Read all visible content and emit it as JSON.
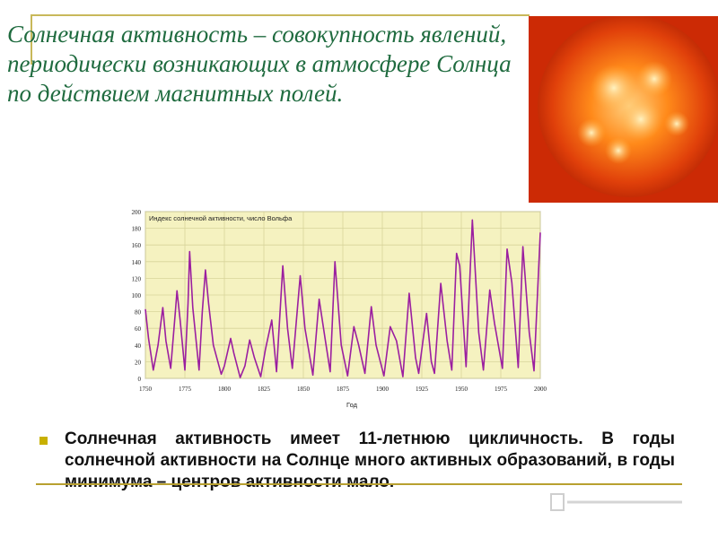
{
  "slide": {
    "title": "Солнечная активность – совокупность явлений, периодически возникающих в атмосфере Солнца по действием магнитных полей.",
    "bullet_text": "Солнечная активность имеет 11-летнюю цикличность. В годы солнечной активности на Солнце много активных образований, в годы минимума – центров активности мало.",
    "colors": {
      "title": "#1f6b3f",
      "accent": "#c8b000",
      "series": "#9b1fa0",
      "plot_bg": "#f5f2c0"
    }
  },
  "chart_data": {
    "type": "line",
    "title": "Индекс солнечной активности, число Вольфа",
    "xlabel": "Год",
    "ylabel": "",
    "xlim": [
      1750,
      2000
    ],
    "ylim": [
      0,
      200
    ],
    "x_ticks": [
      1750,
      1775,
      1800,
      1825,
      1850,
      1875,
      1900,
      1925,
      1950,
      1975,
      2000
    ],
    "y_ticks": [
      0,
      20,
      40,
      60,
      80,
      100,
      120,
      140,
      160,
      180,
      200
    ],
    "grid": true,
    "series": [
      {
        "points": [
          [
            1750,
            83
          ],
          [
            1752,
            48
          ],
          [
            1755,
            10
          ],
          [
            1758,
            40
          ],
          [
            1761,
            85
          ],
          [
            1763,
            45
          ],
          [
            1766,
            12
          ],
          [
            1769,
            80
          ],
          [
            1770,
            105
          ],
          [
            1772,
            70
          ],
          [
            1775,
            10
          ],
          [
            1777,
            90
          ],
          [
            1778,
            152
          ],
          [
            1780,
            85
          ],
          [
            1784,
            10
          ],
          [
            1786,
            80
          ],
          [
            1788,
            130
          ],
          [
            1790,
            90
          ],
          [
            1793,
            40
          ],
          [
            1798,
            5
          ],
          [
            1800,
            15
          ],
          [
            1804,
            48
          ],
          [
            1806,
            30
          ],
          [
            1810,
            1
          ],
          [
            1813,
            15
          ],
          [
            1816,
            46
          ],
          [
            1819,
            25
          ],
          [
            1823,
            2
          ],
          [
            1826,
            35
          ],
          [
            1830,
            70
          ],
          [
            1833,
            8
          ],
          [
            1837,
            135
          ],
          [
            1840,
            60
          ],
          [
            1843,
            12
          ],
          [
            1848,
            123
          ],
          [
            1851,
            60
          ],
          [
            1856,
            4
          ],
          [
            1860,
            95
          ],
          [
            1864,
            45
          ],
          [
            1867,
            8
          ],
          [
            1870,
            140
          ],
          [
            1874,
            40
          ],
          [
            1878,
            3
          ],
          [
            1882,
            62
          ],
          [
            1885,
            40
          ],
          [
            1889,
            6
          ],
          [
            1893,
            86
          ],
          [
            1896,
            40
          ],
          [
            1901,
            3
          ],
          [
            1905,
            62
          ],
          [
            1909,
            45
          ],
          [
            1913,
            2
          ],
          [
            1917,
            102
          ],
          [
            1921,
            25
          ],
          [
            1923,
            6
          ],
          [
            1928,
            78
          ],
          [
            1931,
            20
          ],
          [
            1933,
            6
          ],
          [
            1937,
            114
          ],
          [
            1941,
            45
          ],
          [
            1944,
            10
          ],
          [
            1947,
            150
          ],
          [
            1949,
            135
          ],
          [
            1953,
            14
          ],
          [
            1957,
            190
          ],
          [
            1961,
            55
          ],
          [
            1964,
            10
          ],
          [
            1968,
            106
          ],
          [
            1971,
            66
          ],
          [
            1976,
            12
          ],
          [
            1979,
            155
          ],
          [
            1982,
            115
          ],
          [
            1986,
            13
          ],
          [
            1989,
            158
          ],
          [
            1993,
            55
          ],
          [
            1996,
            9
          ],
          [
            2000,
            175
          ]
        ]
      }
    ]
  }
}
